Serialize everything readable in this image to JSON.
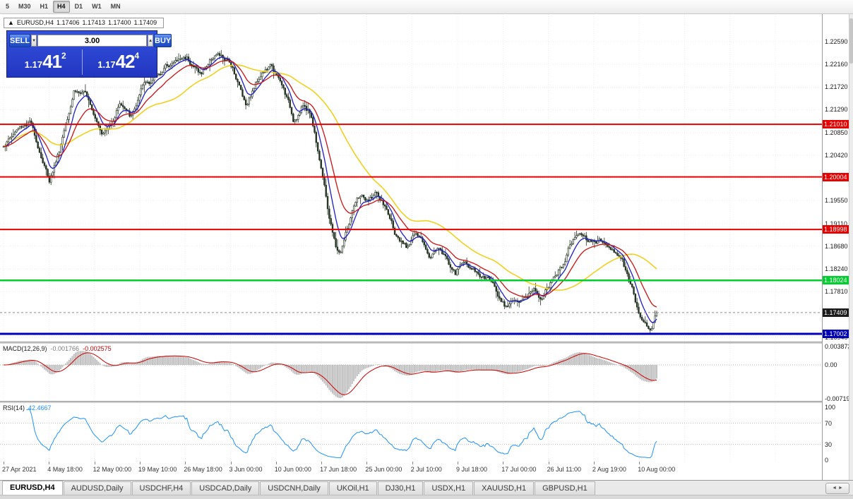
{
  "toolbar": {
    "timeframes": [
      "5",
      "M30",
      "H1",
      "H4",
      "D1",
      "W1",
      "MN"
    ],
    "active": "H4"
  },
  "icons": {
    "collapse_arrow": "▲",
    "spinner_down": "▼",
    "spinner_up": "▲",
    "tab_scroll_left": "◄",
    "tab_scroll_right": "►"
  },
  "quote_bar": {
    "symbol": "EURUSD,H4",
    "open": "1.17406",
    "high": "1.17413",
    "low": "1.17400",
    "close": "1.17409"
  },
  "trade_panel": {
    "sell_label": "SELL",
    "buy_label": "BUY",
    "volume": "3.00",
    "sell_price": {
      "prefix": "1.17",
      "big": "41",
      "sup": "2"
    },
    "buy_price": {
      "prefix": "1.17",
      "big": "42",
      "sup": "4"
    }
  },
  "main_chart": {
    "price_axis_labels": [
      "1.22590",
      "1.22160",
      "1.21720",
      "1.21290",
      "1.20850",
      "1.20420",
      "1.19980",
      "1.19550",
      "1.19110",
      "1.18680",
      "1.18240",
      "1.17810",
      "1.17370",
      "1.16940"
    ],
    "hlines": [
      {
        "price": 1.2101,
        "label": "1.21010",
        "color": "#e60000",
        "thickness": 2
      },
      {
        "price": 1.20004,
        "label": "1.20004",
        "color": "#e60000",
        "thickness": 2
      },
      {
        "price": 1.18998,
        "label": "1.18998",
        "color": "#e60000",
        "thickness": 2
      },
      {
        "price": 1.18024,
        "label": "1.18024",
        "color": "#00cf2e",
        "thickness": 2.5
      },
      {
        "price": 1.17002,
        "label": "1.17002",
        "color": "#0000bb",
        "thickness": 3
      }
    ],
    "current_price": {
      "value": 1.17409,
      "label": "1.17409",
      "box_color": "#1b1b1b"
    },
    "candle_color": "#243424",
    "ma_colors": {
      "fast": "#1c1ccd",
      "medium": "#cc1111",
      "slow": "#f0d020"
    },
    "grid_color": "#ececec",
    "anchors": [
      [
        0.0,
        1.2062
      ],
      [
        0.02,
        1.209
      ],
      [
        0.04,
        1.2108
      ],
      [
        0.058,
        1.2042
      ],
      [
        0.07,
        1.1996
      ],
      [
        0.085,
        1.2052
      ],
      [
        0.108,
        1.2175
      ],
      [
        0.13,
        1.2152
      ],
      [
        0.152,
        1.2092
      ],
      [
        0.165,
        1.2105
      ],
      [
        0.178,
        1.2148
      ],
      [
        0.195,
        1.2112
      ],
      [
        0.215,
        1.2172
      ],
      [
        0.228,
        1.2186
      ],
      [
        0.254,
        1.2218
      ],
      [
        0.281,
        1.223
      ],
      [
        0.303,
        1.2198
      ],
      [
        0.324,
        1.2238
      ],
      [
        0.351,
        1.221
      ],
      [
        0.371,
        1.2142
      ],
      [
        0.395,
        1.2204
      ],
      [
        0.411,
        1.2212
      ],
      [
        0.432,
        1.2156
      ],
      [
        0.444,
        1.211
      ],
      [
        0.459,
        1.2138
      ],
      [
        0.47,
        1.2124
      ],
      [
        0.486,
        1.2028
      ],
      [
        0.497,
        1.1936
      ],
      [
        0.508,
        1.1868
      ],
      [
        0.515,
        1.1852
      ],
      [
        0.525,
        1.1896
      ],
      [
        0.536,
        1.1936
      ],
      [
        0.547,
        1.1962
      ],
      [
        0.558,
        1.1948
      ],
      [
        0.569,
        1.1968
      ],
      [
        0.584,
        1.194
      ],
      [
        0.595,
        1.1908
      ],
      [
        0.606,
        1.1872
      ],
      [
        0.617,
        1.186
      ],
      [
        0.628,
        1.1894
      ],
      [
        0.639,
        1.1878
      ],
      [
        0.654,
        1.1854
      ],
      [
        0.666,
        1.1874
      ],
      [
        0.681,
        1.184
      ],
      [
        0.692,
        1.1813
      ],
      [
        0.703,
        1.184
      ],
      [
        0.714,
        1.1826
      ],
      [
        0.73,
        1.1813
      ],
      [
        0.746,
        1.18
      ],
      [
        0.757,
        1.1778
      ],
      [
        0.768,
        1.1758
      ],
      [
        0.779,
        1.1772
      ],
      [
        0.789,
        1.1752
      ],
      [
        0.8,
        1.1772
      ],
      [
        0.811,
        1.1786
      ],
      [
        0.822,
        1.1774
      ],
      [
        0.833,
        1.1793
      ],
      [
        0.843,
        1.1806
      ],
      [
        0.854,
        1.1826
      ],
      [
        0.865,
        1.1866
      ],
      [
        0.876,
        1.1887
      ],
      [
        0.884,
        1.1896
      ],
      [
        0.894,
        1.188
      ],
      [
        0.905,
        1.1887
      ],
      [
        0.916,
        1.1877
      ],
      [
        0.927,
        1.1873
      ],
      [
        0.937,
        1.1859
      ],
      [
        0.946,
        1.1846
      ],
      [
        0.954,
        1.1819
      ],
      [
        0.962,
        1.1786
      ],
      [
        0.97,
        1.1752
      ],
      [
        0.977,
        1.1725
      ],
      [
        0.984,
        1.1712
      ],
      [
        0.99,
        1.1707
      ],
      [
        1.0,
        1.17409
      ]
    ]
  },
  "macd_panel": {
    "title": "MACD(12,26,9)",
    "value_main": "-0.001766",
    "value_signal": "-0.002575",
    "axis_labels": [
      {
        "text": "0.003873",
        "value": 0.003873
      },
      {
        "text": "0.00",
        "value": 0
      },
      {
        "text": "-0.00719",
        "value": -0.00719
      }
    ],
    "histogram_color": "#bfbfbf",
    "signal_color": "#cc0000"
  },
  "rsi_panel": {
    "title": "RSI(14)",
    "value": "42.4667",
    "axis_labels": [
      {
        "text": "100",
        "value": 100
      },
      {
        "text": "70",
        "value": 70
      },
      {
        "text": "30",
        "value": 30
      },
      {
        "text": "0",
        "value": 0
      }
    ],
    "levels": [
      70,
      30
    ],
    "line_color": "#1e90ff"
  },
  "date_axis": {
    "labels": [
      "27 Apr 2021",
      "4 May 18:00",
      "12 May 00:00",
      "19 May 10:00",
      "26 May 18:00",
      "3 Jun 00:00",
      "10 Jun 00:00",
      "17 Jun 18:00",
      "25 Jun 00:00",
      "2 Jul 10:00",
      "9 Jul 18:00",
      "17 Jul 00:00",
      "26 Jul 11:00",
      "2 Aug 19:00",
      "10 Aug 00:00"
    ]
  },
  "tabs": {
    "items": [
      "EURUSD,H4",
      "AUDUSD,Daily",
      "USDCHF,H4",
      "USDCAD,Daily",
      "USDCNH,Daily",
      "UKOil,H1",
      "DJ30,H1",
      "USDX,H1",
      "XAUUSD,H1",
      "GBPUSD,H1"
    ],
    "active_index": 0
  }
}
